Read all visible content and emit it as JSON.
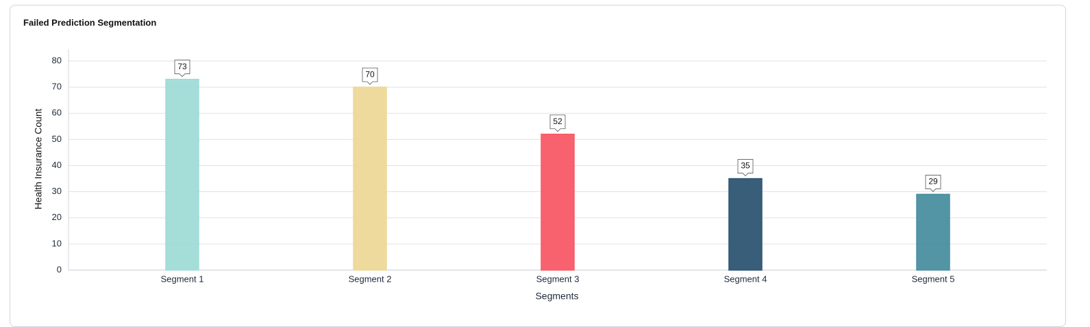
{
  "chart_data": {
    "type": "bar",
    "title": "Failed Prediction Segmentation",
    "categories": [
      "Segment 1",
      "Segment 2",
      "Segment 3",
      "Segment 4",
      "Segment 5"
    ],
    "values": [
      73,
      70,
      52,
      35,
      29
    ],
    "colors": [
      "#a0dbd7",
      "#edd898",
      "#f85a66",
      "#2d5573",
      "#4a8fa0"
    ],
    "x_label": "Segments",
    "y_label": "Health Insurance Count",
    "ylim": [
      0,
      80
    ],
    "yticks": [
      0,
      10,
      20,
      30,
      40,
      50,
      60,
      70,
      80
    ],
    "grid": true
  }
}
